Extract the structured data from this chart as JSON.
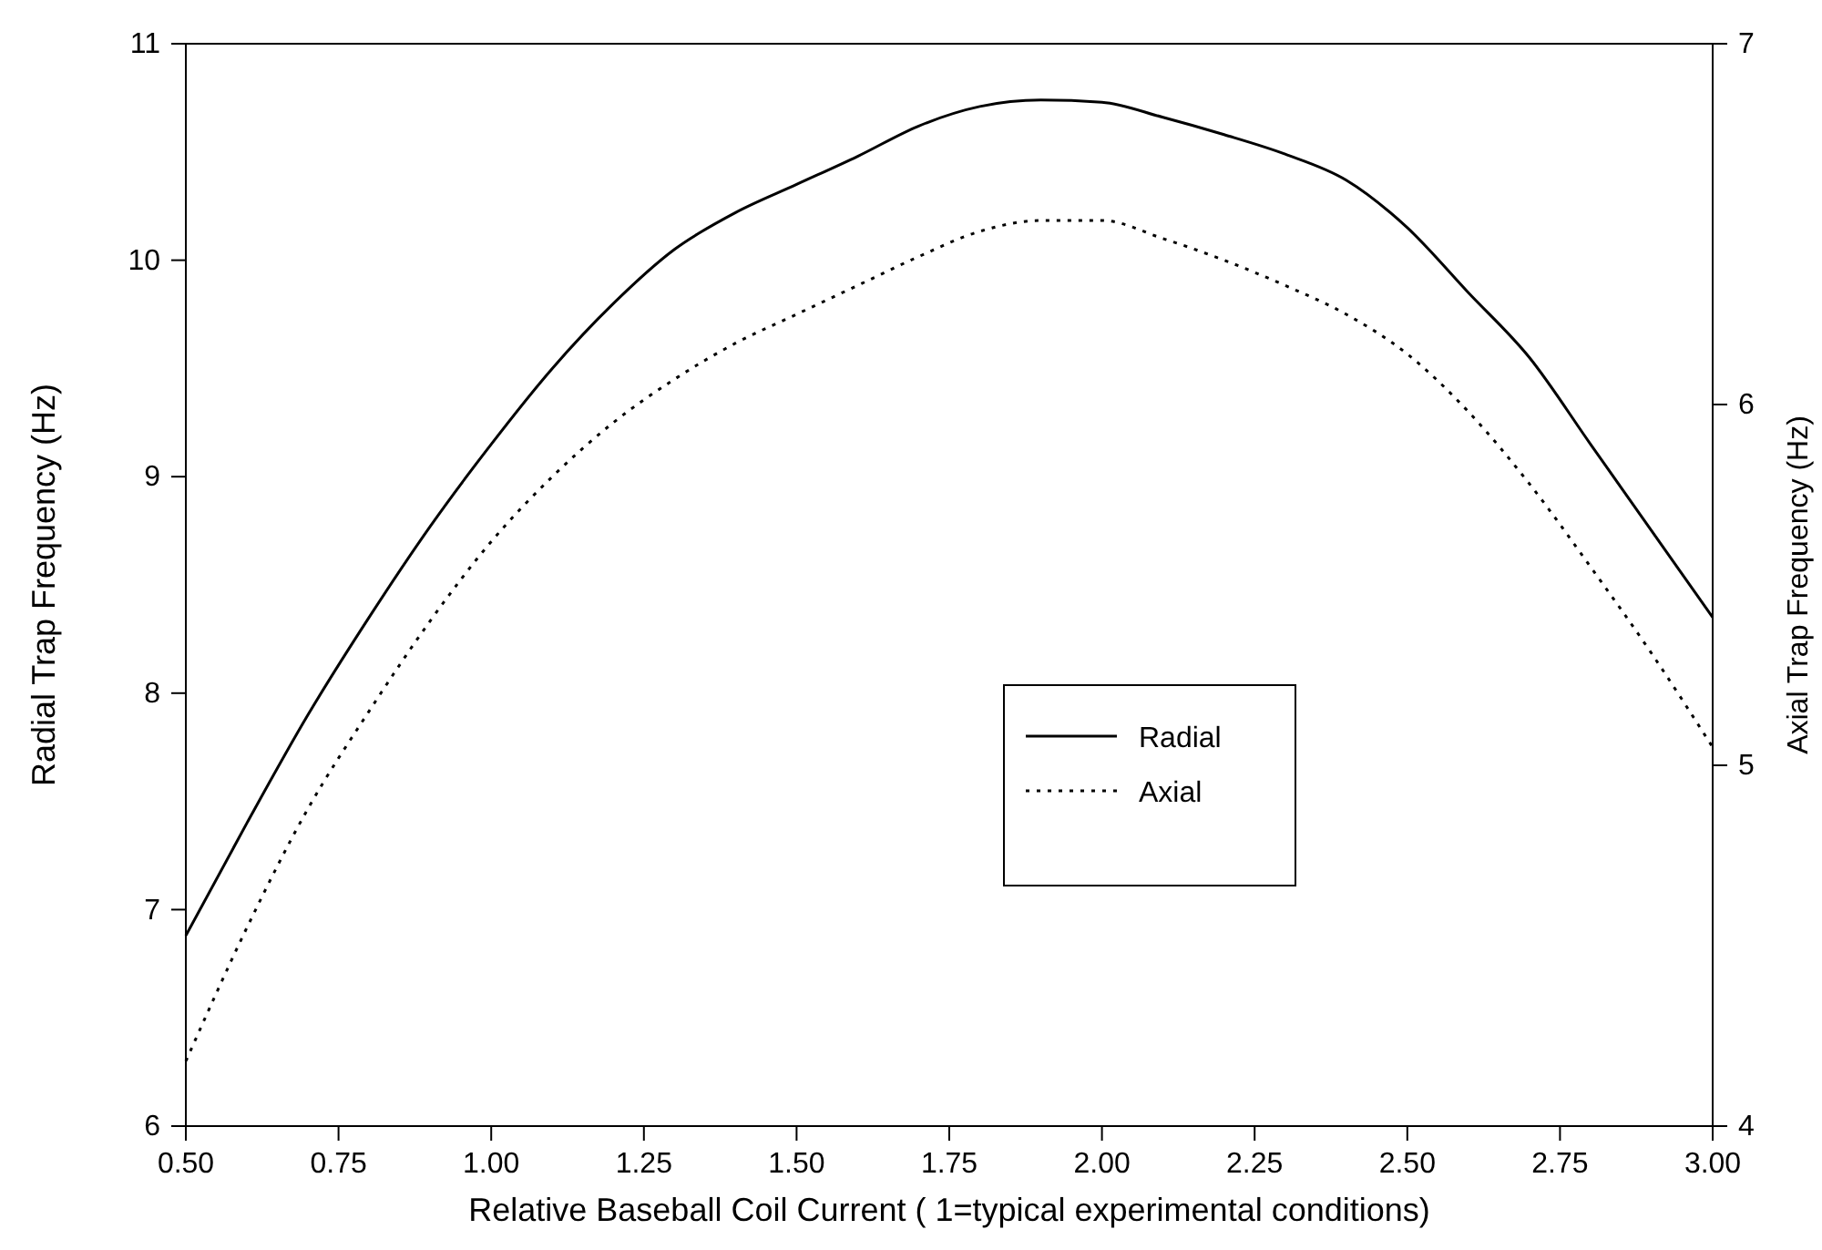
{
  "chart_data": {
    "type": "line",
    "xlabel": "Relative Baseball Coil Current ( 1=typical experimental conditions)",
    "ylabel": "Radial Trap Frequency (Hz)",
    "y2label": "Axial Trap Frequency (Hz)",
    "x": [
      0.5,
      0.6,
      0.7,
      0.8,
      0.9,
      1.0,
      1.1,
      1.2,
      1.3,
      1.4,
      1.5,
      1.6,
      1.7,
      1.8,
      1.9,
      2.0,
      2.1,
      2.2,
      2.3,
      2.4,
      2.5,
      2.6,
      2.7,
      2.8,
      2.9,
      3.0
    ],
    "series": [
      {
        "name": "Radial",
        "color": "#000000",
        "line_style": "solid",
        "values": [
          6.88,
          7.4,
          7.9,
          8.35,
          8.77,
          9.15,
          9.5,
          9.8,
          10.05,
          10.22,
          10.35,
          10.48,
          10.62,
          10.71,
          10.74,
          10.73,
          10.66,
          10.58,
          10.49,
          10.37,
          10.15,
          9.85,
          9.55,
          9.15,
          8.75,
          8.35
        ]
      },
      {
        "name": "Axial",
        "color": "#000000",
        "line_style": "dotted",
        "axis": "y2",
        "values": [
          4.18,
          4.55,
          4.88,
          5.15,
          5.4,
          5.62,
          5.8,
          5.95,
          6.07,
          6.17,
          6.25,
          6.33,
          6.41,
          6.48,
          6.51,
          6.51,
          6.46,
          6.4,
          6.33,
          6.25,
          6.14,
          5.98,
          5.78,
          5.55,
          5.31,
          5.05
        ]
      }
    ],
    "xlim": [
      0.5,
      3.0
    ],
    "xticks": [
      {
        "value": 0.5,
        "label": "0.50"
      },
      {
        "value": 0.75,
        "label": "0.75"
      },
      {
        "value": 1.0,
        "label": "1.00"
      },
      {
        "value": 1.25,
        "label": "1.25"
      },
      {
        "value": 1.5,
        "label": "1.50"
      },
      {
        "value": 1.75,
        "label": "1.75"
      },
      {
        "value": 2.0,
        "label": "2.00"
      },
      {
        "value": 2.25,
        "label": "2.25"
      },
      {
        "value": 2.5,
        "label": "2.50"
      },
      {
        "value": 2.75,
        "label": "2.75"
      },
      {
        "value": 3.0,
        "label": "3.00"
      }
    ],
    "ylim": [
      6,
      11
    ],
    "yticks": [
      6,
      7,
      8,
      9,
      10,
      11
    ],
    "y2lim": [
      4,
      7
    ],
    "y2ticks": [
      4,
      5,
      6,
      7
    ],
    "grid": false,
    "legend": "bottom",
    "marker": "none"
  }
}
